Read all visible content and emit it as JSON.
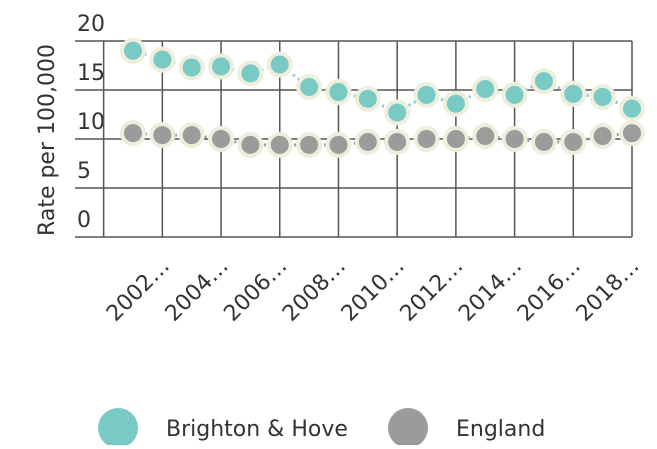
{
  "chart_data": {
    "type": "line",
    "y_label": "Rate per 100,000",
    "categories": [
      null,
      "2002…",
      null,
      "2004…",
      null,
      "2006…",
      null,
      "2008…",
      null,
      "2010…",
      null,
      "2012…",
      null,
      "2014…",
      null,
      "2016…",
      null,
      "2018…"
    ],
    "series": [
      {
        "name": "Brighton & Hove",
        "color": "#79c9c5",
        "values": [
          19.0,
          18.1,
          17.3,
          17.4,
          16.7,
          17.6,
          15.3,
          14.8,
          14.1,
          12.7,
          14.5,
          13.6,
          15.1,
          14.5,
          15.9,
          14.6,
          14.3,
          13.1
        ]
      },
      {
        "name": "England",
        "color": "#9b9b9b",
        "values": [
          10.6,
          10.4,
          10.4,
          10.0,
          9.4,
          9.4,
          9.4,
          9.4,
          9.7,
          9.7,
          10.0,
          10.0,
          10.3,
          10.0,
          9.7,
          9.7,
          10.3,
          10.6
        ]
      }
    ],
    "ylim": [
      0,
      20
    ],
    "yticks": [
      0,
      5,
      10,
      15,
      20
    ],
    "grid": true
  }
}
